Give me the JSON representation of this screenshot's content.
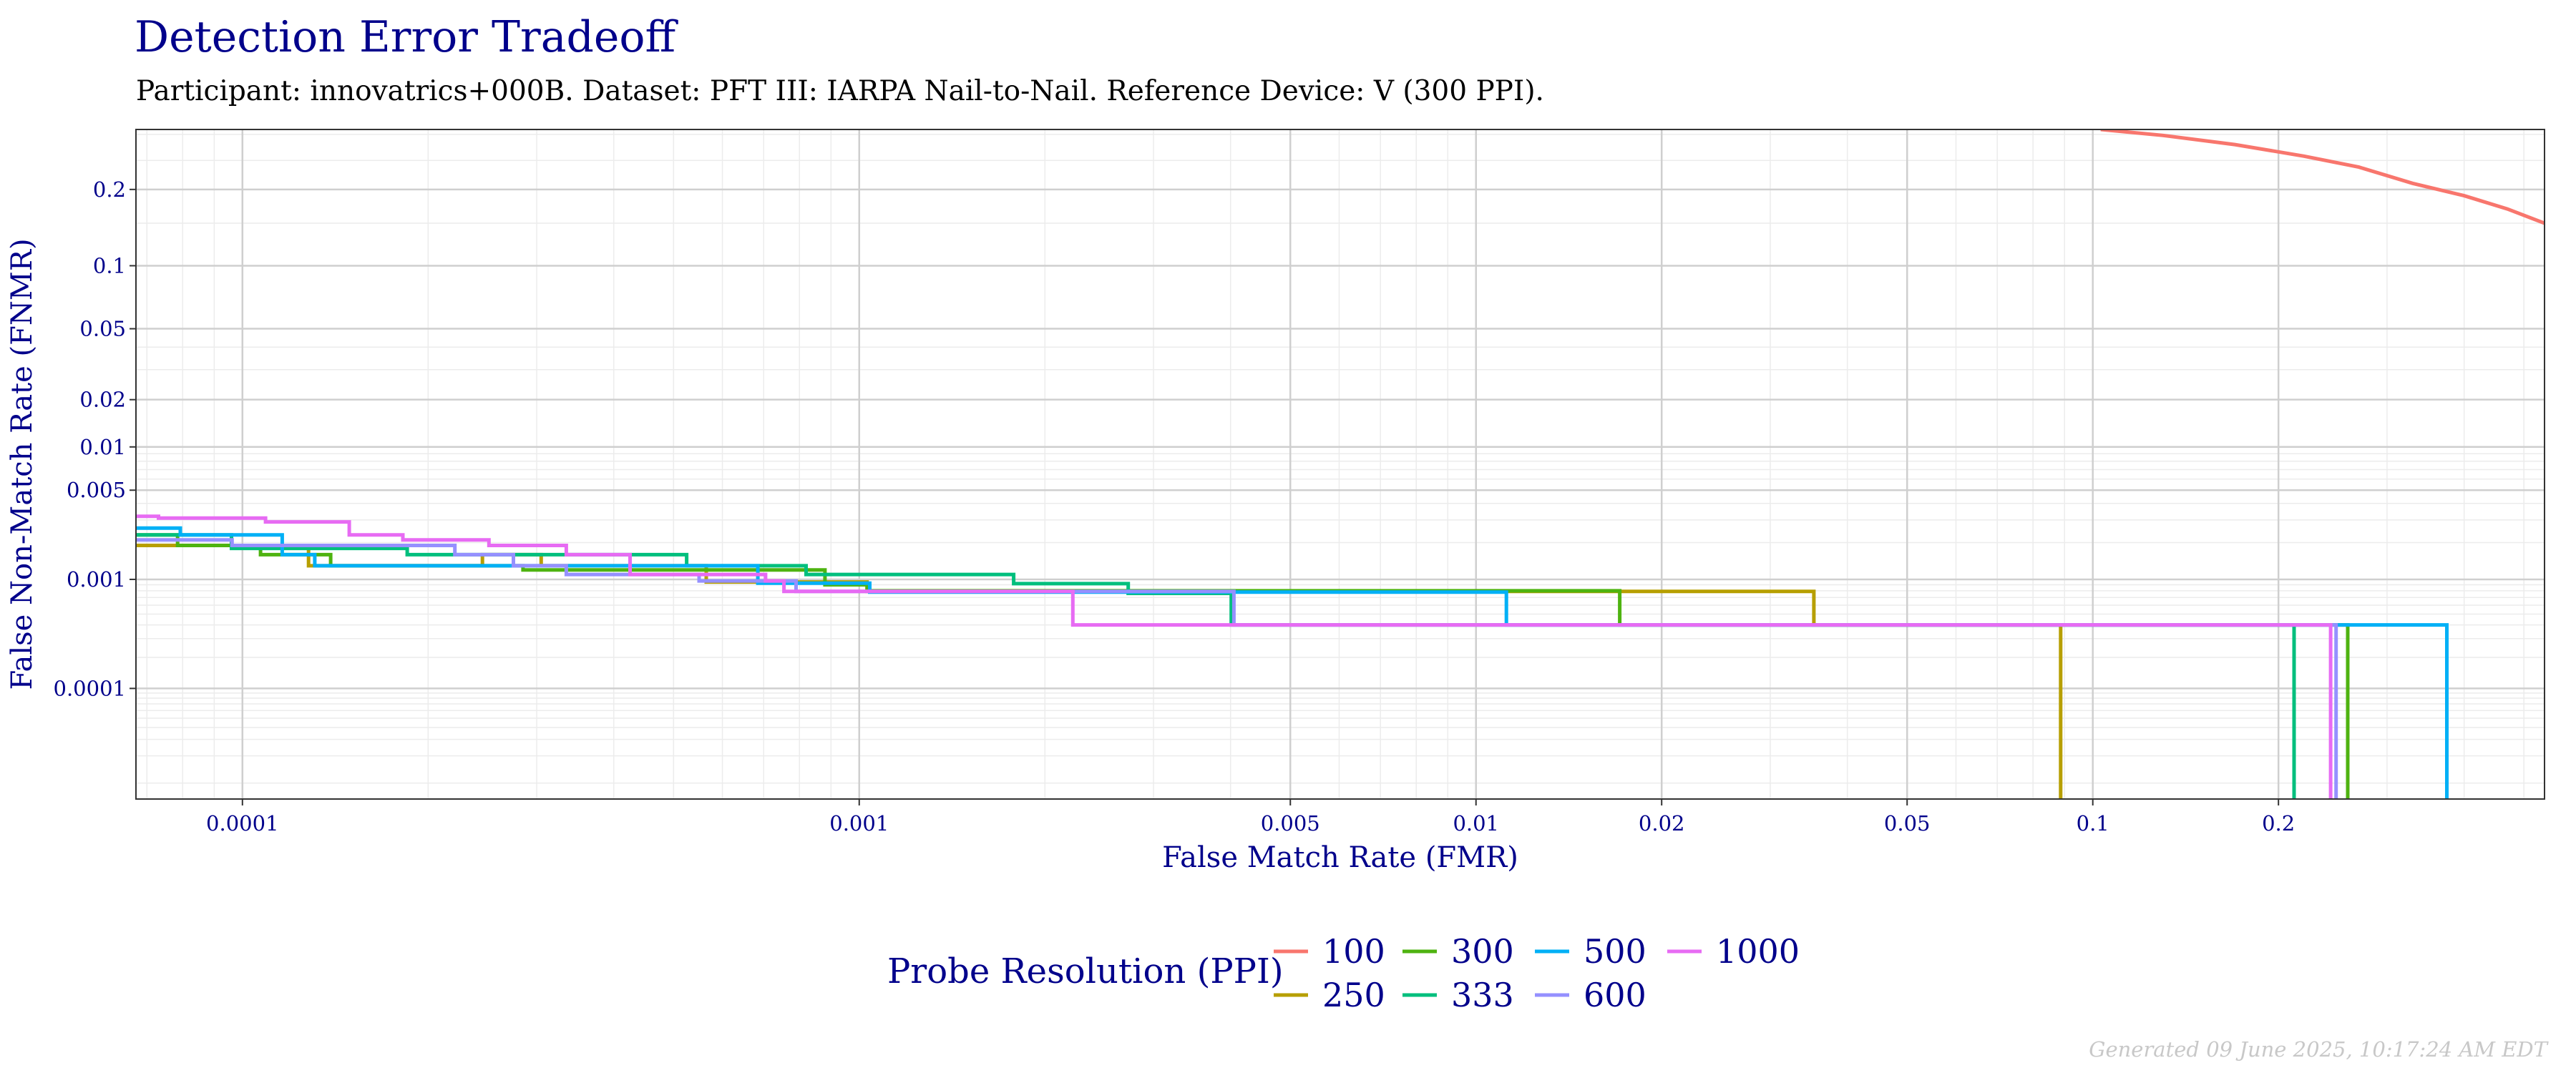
{
  "chart_data": {
    "type": "line",
    "title": "Detection Error Tradeoff",
    "subtitle": "Participant: innovatrics+000B. Dataset: PFT III: IARPA Nail-to-Nail. Reference Device: V (300 PPI).",
    "xlabel": "False Match Rate (FMR)",
    "ylabel": "False Non-Match Rate (FNMR)",
    "x_scale": "log",
    "y_scale": "probit",
    "xlim": [
      6.72e-05,
      0.54
    ],
    "ylim": [
      6.6e-06,
      0.31
    ],
    "x_ticks": [
      {
        "value": 0.0001,
        "label": "0.0001"
      },
      {
        "value": 0.001,
        "label": "0.001"
      },
      {
        "value": 0.005,
        "label": "0.005"
      },
      {
        "value": 0.01,
        "label": "0.01"
      },
      {
        "value": 0.02,
        "label": "0.02"
      },
      {
        "value": 0.05,
        "label": "0.05"
      },
      {
        "value": 0.1,
        "label": "0.1"
      },
      {
        "value": 0.2,
        "label": "0.2"
      }
    ],
    "y_ticks": [
      {
        "value": 0.2,
        "label": "0.2"
      },
      {
        "value": 0.1,
        "label": "0.1"
      },
      {
        "value": 0.05,
        "label": "0.05"
      },
      {
        "value": 0.02,
        "label": "0.02"
      },
      {
        "value": 0.01,
        "label": "0.01"
      },
      {
        "value": 0.005,
        "label": "0.005"
      },
      {
        "value": 0.001,
        "label": "0.001"
      },
      {
        "value": 0.0001,
        "label": "0.0001"
      }
    ],
    "legend_title": "Probe Resolution (PPI)",
    "legend_position": "bottom",
    "series": [
      {
        "name": "100",
        "color": "#f8766d",
        "points": [
          [
            0.103,
            0.31
          ],
          [
            0.13,
            0.298
          ],
          [
            0.17,
            0.28
          ],
          [
            0.22,
            0.258
          ],
          [
            0.27,
            0.238
          ],
          [
            0.33,
            0.21
          ],
          [
            0.4,
            0.19
          ],
          [
            0.47,
            0.17
          ],
          [
            0.54,
            0.15
          ]
        ]
      },
      {
        "name": "250",
        "color": "#b79f00",
        "points": [
          [
            6.72e-05,
            0.0019
          ],
          [
            0.000128,
            0.0019
          ],
          [
            0.000128,
            0.0013
          ],
          [
            0.000245,
            0.0013
          ],
          [
            0.000245,
            0.0016
          ],
          [
            0.000305,
            0.0016
          ],
          [
            0.000305,
            0.0013
          ],
          [
            0.000565,
            0.0013
          ],
          [
            0.000565,
            0.00095
          ],
          [
            0.00103,
            0.00095
          ],
          [
            0.00103,
            0.00079
          ],
          [
            0.0353,
            0.00079
          ],
          [
            0.0353,
            0.0004
          ],
          [
            0.0887,
            0.0004
          ],
          [
            0.0887,
            6.6e-06
          ]
        ]
      },
      {
        "name": "300",
        "color": "#4eb310",
        "points": [
          [
            6.72e-05,
            0.0023
          ],
          [
            7.85e-05,
            0.0023
          ],
          [
            7.85e-05,
            0.0019
          ],
          [
            0.000107,
            0.0019
          ],
          [
            0.000107,
            0.0016
          ],
          [
            0.000139,
            0.0016
          ],
          [
            0.000139,
            0.0013
          ],
          [
            0.000285,
            0.0013
          ],
          [
            0.000285,
            0.0012
          ],
          [
            0.00088,
            0.0012
          ],
          [
            0.00088,
            0.0009
          ],
          [
            0.00103,
            0.0009
          ],
          [
            0.00103,
            0.0008
          ],
          [
            0.0171,
            0.0008
          ],
          [
            0.0171,
            0.0004
          ],
          [
            0.259,
            0.0004
          ],
          [
            0.259,
            6.6e-06
          ]
        ]
      },
      {
        "name": "333",
        "color": "#00bf7d",
        "points": [
          [
            6.72e-05,
            0.0023
          ],
          [
            9.6e-05,
            0.0023
          ],
          [
            9.6e-05,
            0.0018
          ],
          [
            0.000185,
            0.0018
          ],
          [
            0.000185,
            0.0016
          ],
          [
            0.000525,
            0.0016
          ],
          [
            0.000525,
            0.0013
          ],
          [
            0.00082,
            0.0013
          ],
          [
            0.00082,
            0.0011
          ],
          [
            0.00178,
            0.0011
          ],
          [
            0.00178,
            0.00092
          ],
          [
            0.00273,
            0.00092
          ],
          [
            0.00273,
            0.00076
          ],
          [
            0.00401,
            0.00076
          ],
          [
            0.00401,
            0.0004
          ],
          [
            0.212,
            0.0004
          ],
          [
            0.212,
            6.6e-06
          ]
        ]
      },
      {
        "name": "500",
        "color": "#00b0f6",
        "points": [
          [
            6.72e-05,
            0.0026
          ],
          [
            7.93e-05,
            0.0026
          ],
          [
            7.93e-05,
            0.0023
          ],
          [
            0.000116,
            0.0023
          ],
          [
            0.000116,
            0.0016
          ],
          [
            0.000131,
            0.0016
          ],
          [
            0.000131,
            0.0013
          ],
          [
            0.000685,
            0.0013
          ],
          [
            0.000685,
            0.00093
          ],
          [
            0.00104,
            0.00093
          ],
          [
            0.00104,
            0.00078
          ],
          [
            0.0112,
            0.00078
          ],
          [
            0.0112,
            0.0004
          ],
          [
            0.375,
            0.0004
          ],
          [
            0.375,
            6.6e-06
          ]
        ]
      },
      {
        "name": "600",
        "color": "#9590ff",
        "points": [
          [
            6.72e-05,
            0.0021
          ],
          [
            9.62e-05,
            0.0021
          ],
          [
            9.62e-05,
            0.0019
          ],
          [
            0.000221,
            0.0019
          ],
          [
            0.000221,
            0.0016
          ],
          [
            0.000275,
            0.0016
          ],
          [
            0.000275,
            0.0013
          ],
          [
            0.000335,
            0.0013
          ],
          [
            0.000335,
            0.0011
          ],
          [
            0.00055,
            0.0011
          ],
          [
            0.00055,
            0.00097
          ],
          [
            0.00079,
            0.00097
          ],
          [
            0.00079,
            0.00079
          ],
          [
            0.00405,
            0.00079
          ],
          [
            0.00405,
            0.0004
          ],
          [
            0.248,
            0.0004
          ],
          [
            0.248,
            6.6e-06
          ]
        ]
      },
      {
        "name": "1000",
        "color": "#e76bf3",
        "points": [
          [
            6.72e-05,
            0.0032
          ],
          [
            7.31e-05,
            0.0032
          ],
          [
            7.31e-05,
            0.0031
          ],
          [
            0.000109,
            0.0031
          ],
          [
            0.000109,
            0.0029
          ],
          [
            0.000149,
            0.0029
          ],
          [
            0.000149,
            0.0023
          ],
          [
            0.000182,
            0.0023
          ],
          [
            0.000182,
            0.0021
          ],
          [
            0.000251,
            0.0021
          ],
          [
            0.000251,
            0.0019
          ],
          [
            0.000335,
            0.0019
          ],
          [
            0.000335,
            0.0016
          ],
          [
            0.000425,
            0.0016
          ],
          [
            0.000425,
            0.0011
          ],
          [
            0.000705,
            0.0011
          ],
          [
            0.000705,
            0.00097
          ],
          [
            0.000755,
            0.00097
          ],
          [
            0.000755,
            0.00079
          ],
          [
            0.00222,
            0.00079
          ],
          [
            0.00222,
            0.0004
          ],
          [
            0.243,
            0.0004
          ],
          [
            0.243,
            6.6e-06
          ]
        ]
      }
    ]
  },
  "footer": "Generated 09 June 2025, 10:17:24 AM EDT"
}
